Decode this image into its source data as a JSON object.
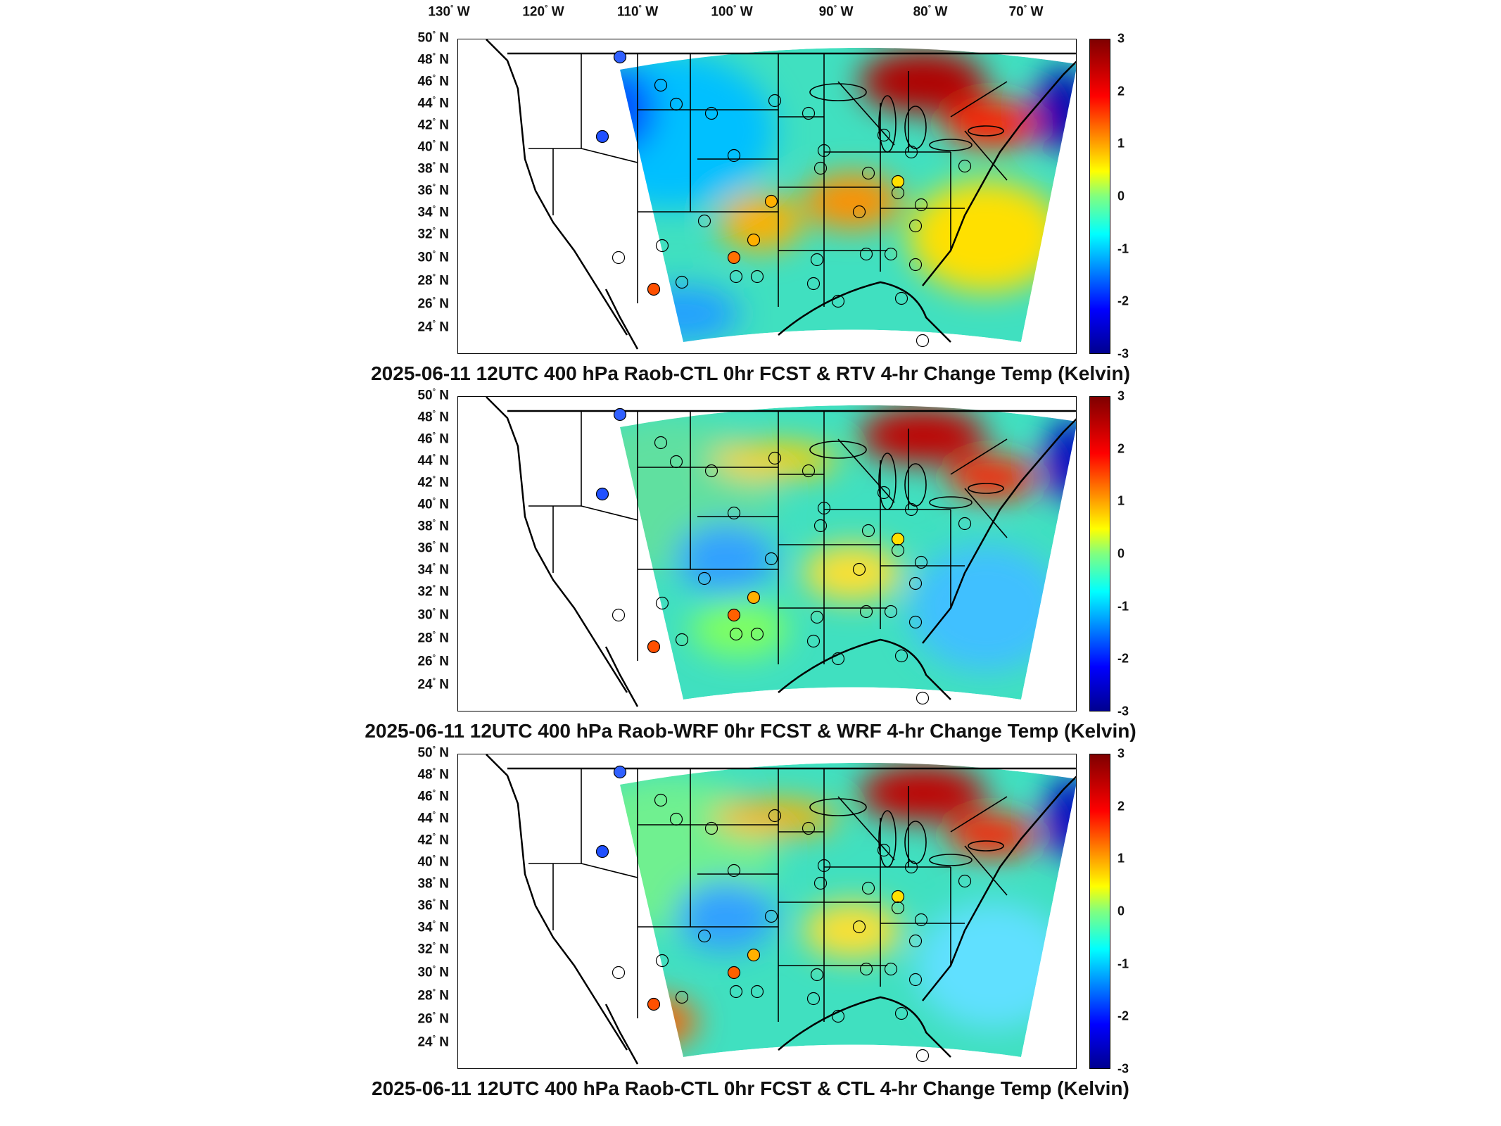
{
  "lon_ticks": [
    {
      "label": "130",
      "unit": "W"
    },
    {
      "label": "120",
      "unit": "W"
    },
    {
      "label": "110",
      "unit": "W"
    },
    {
      "label": "100",
      "unit": "W"
    },
    {
      "label": "90",
      "unit": "W"
    },
    {
      "label": "80",
      "unit": "W"
    },
    {
      "label": "70",
      "unit": "W"
    }
  ],
  "lat_ticks": [
    "50",
    "48",
    "46",
    "44",
    "42",
    "40",
    "38",
    "36",
    "34",
    "32",
    "30",
    "28",
    "26",
    "24"
  ],
  "lat_unit": "N",
  "colorbar_ticks": [
    "3",
    "2",
    "1",
    "0",
    "-1",
    "-2",
    "-3"
  ],
  "colormap": "jet",
  "panels": [
    {
      "title": "2025-06-11 12UTC 400 hPa Raob-CTL 0hr FCST & RTV 4-hr Change Temp (Kelvin)"
    },
    {
      "title": "2025-06-11 12UTC 400 hPa Raob-WRF 0hr FCST & WRF 4-hr Change Temp (Kelvin)"
    },
    {
      "title": "2025-06-11 12UTC 400 hPa Raob-CTL 0hr FCST & CTL 4-hr Change Temp (Kelvin)"
    }
  ],
  "colors": {
    "warm": "#ff0000",
    "cool": "#0000ff",
    "neutral": "#80ff80"
  }
}
